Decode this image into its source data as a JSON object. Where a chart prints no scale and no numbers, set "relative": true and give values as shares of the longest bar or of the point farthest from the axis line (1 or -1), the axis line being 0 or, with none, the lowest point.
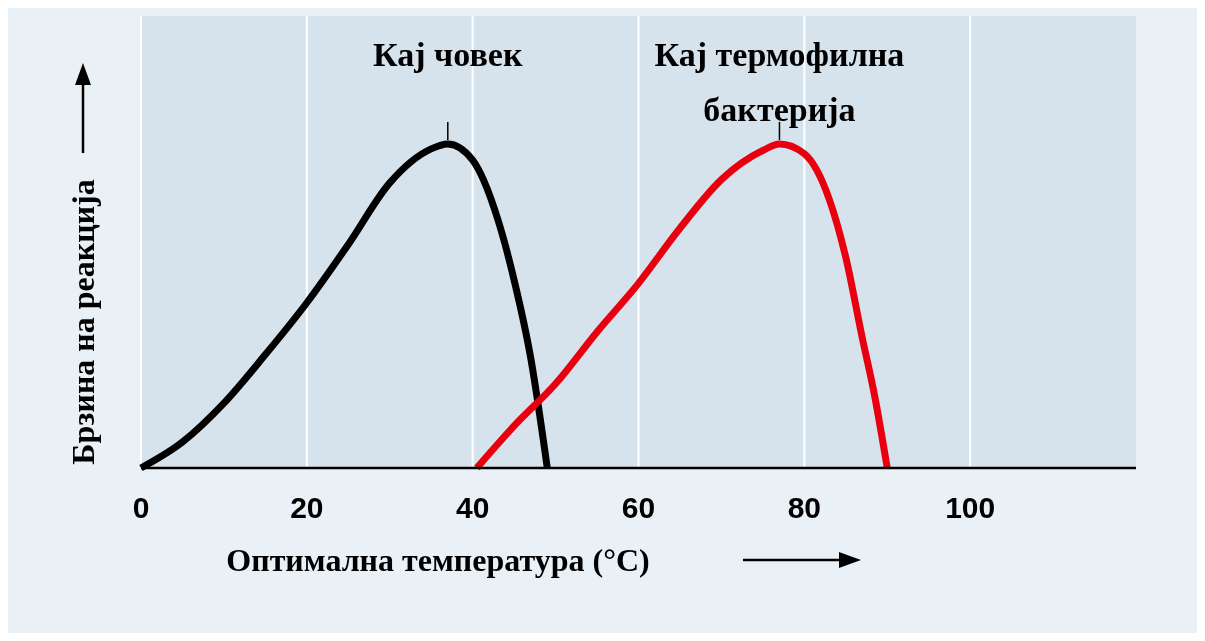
{
  "chart_data": {
    "type": "line",
    "relative": true,
    "xlabel": "Оптимална температура (°C)",
    "ylabel": "Брзина на реакција",
    "xlim": [
      0,
      120
    ],
    "xticks": [
      0,
      20,
      40,
      60,
      80,
      100
    ],
    "grid": "x",
    "line_style": "solid",
    "marker": "none",
    "series": [
      {
        "name": "Кај човек",
        "color": "#000000",
        "x": [
          0,
          5,
          10,
          15,
          20,
          25,
          30,
          35,
          37,
          40,
          43,
          45,
          47,
          49
        ],
        "values": [
          0,
          0.08,
          0.2,
          0.35,
          0.51,
          0.69,
          0.88,
          0.985,
          1,
          0.95,
          0.77,
          0.58,
          0.34,
          0
        ]
      },
      {
        "name": "Кај термофилна бактерија",
        "color": "#e8000f",
        "x": [
          40.5,
          45,
          50,
          55,
          60,
          65,
          70,
          75,
          77,
          80,
          83,
          85,
          87,
          88.5,
          90
        ],
        "values": [
          0,
          0.13,
          0.26,
          0.42,
          0.57,
          0.74,
          0.89,
          0.98,
          1,
          0.97,
          0.83,
          0.65,
          0.4,
          0.22,
          0
        ]
      }
    ]
  }
}
